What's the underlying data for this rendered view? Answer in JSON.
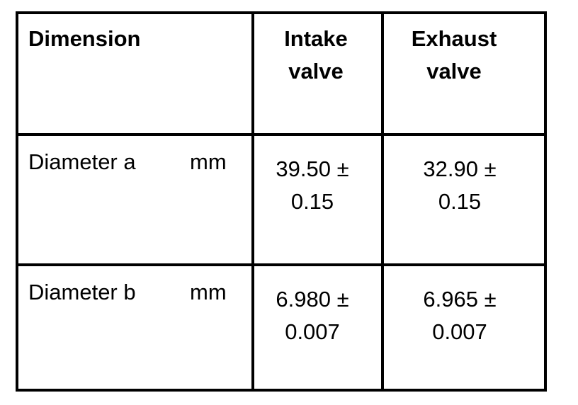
{
  "table": {
    "header": [
      "Dimension",
      "Intake valve",
      "Exhaust valve"
    ],
    "rows": [
      [
        "Diameter a",
        "mm",
        "39.50 ± 0.15",
        "32.90 ± 0.15"
      ],
      [
        "Diameter b",
        "mm",
        "6.980 ± 0.007",
        "6.965 ± 0.007"
      ]
    ]
  }
}
